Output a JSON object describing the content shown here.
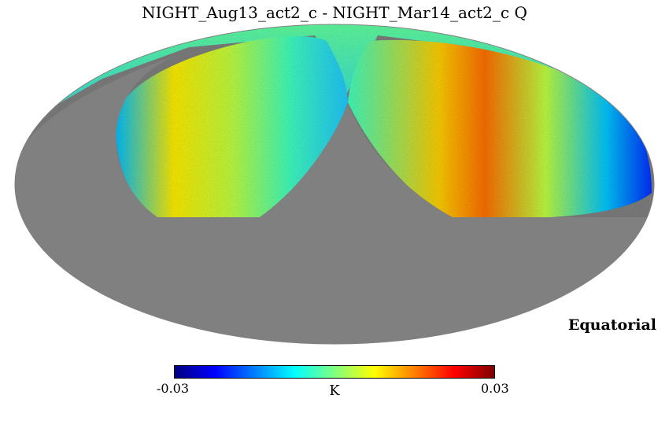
{
  "title": "NIGHT_Aug13_act2_c - NIGHT_Mar14_act2_c Q",
  "coordinate_system": "Equatorial",
  "projection": "mollweide",
  "masked_color": "#808080",
  "colorbar": {
    "min_label": "-0.03",
    "max_label": "0.03",
    "unit": "K",
    "colormap": "jet",
    "stops": [
      "#00007f",
      "#0000ff",
      "#007fff",
      "#00ffff",
      "#7fff7f",
      "#ffff00",
      "#ff7f00",
      "#ff0000",
      "#7f0000"
    ]
  }
}
